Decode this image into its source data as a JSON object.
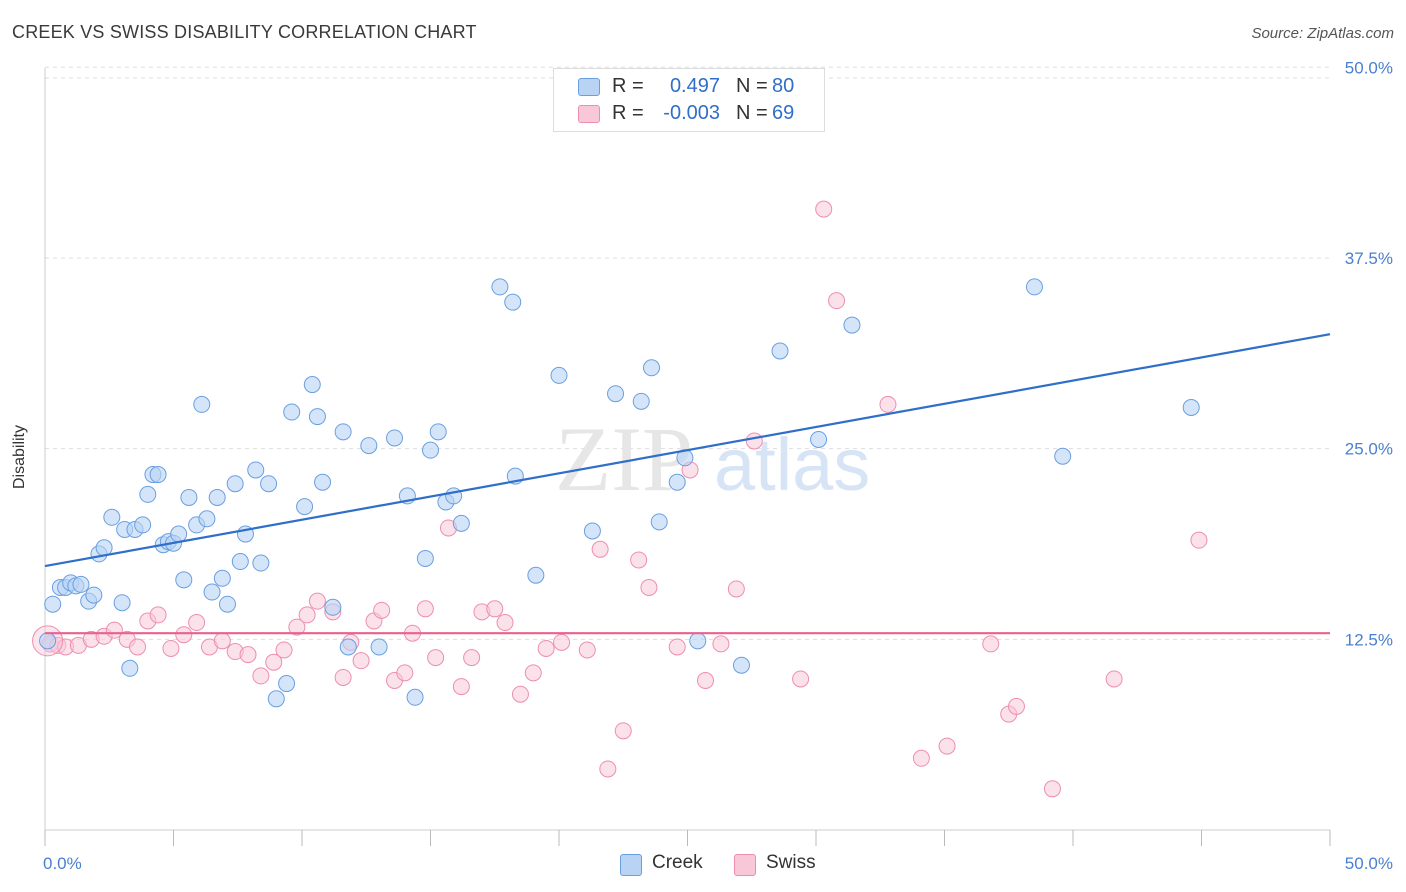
{
  "title": "CREEK VS SWISS DISABILITY CORRELATION CHART",
  "source": "Source: ZipAtlas.com",
  "watermark": {
    "zip": "ZIP",
    "atlas": "atlas"
  },
  "legend": {
    "rows": [
      {
        "r_label": "R =",
        "r_value": "0.497",
        "n_label": "N =",
        "n_value": "80"
      },
      {
        "r_label": "R =",
        "r_value": "-0.003",
        "n_label": "N =",
        "n_value": "69"
      }
    ]
  },
  "colors": {
    "creek_fill": "#b9d3f5",
    "creek_stroke": "#6a9fe0",
    "creek_line": "#2f6fc9",
    "swiss_fill": "#f8c8d8",
    "swiss_stroke": "#ee8eaf",
    "swiss_line": "#e8628c",
    "tick_label": "#4a7fd0",
    "grid": "#dddddd"
  },
  "chart_data": {
    "type": "scatter",
    "ylabel": "Disability",
    "xlabel": "",
    "xlim": [
      0,
      50
    ],
    "ylim": [
      0,
      51
    ],
    "x_tick_labels": [
      "0.0%",
      "50.0%"
    ],
    "y_tick_labels": [
      "12.5%",
      "25.0%",
      "37.5%",
      "50.0%"
    ],
    "y_ticks": [
      12.5,
      25.0,
      37.5,
      50.0
    ],
    "grid": true,
    "legend_position": "bottom-center",
    "series": [
      {
        "name": "Creek",
        "trend": [
          [
            0,
            17.3
          ],
          [
            50,
            32.5
          ]
        ],
        "points": [
          [
            0.3,
            14.8
          ],
          [
            0.6,
            15.9
          ],
          [
            0.8,
            15.9
          ],
          [
            1.0,
            16.2
          ],
          [
            1.2,
            16.0
          ],
          [
            1.4,
            16.1
          ],
          [
            1.7,
            15.0
          ],
          [
            1.9,
            15.4
          ],
          [
            2.1,
            18.1
          ],
          [
            2.3,
            18.5
          ],
          [
            2.6,
            20.5
          ],
          [
            3.0,
            14.9
          ],
          [
            3.1,
            19.7
          ],
          [
            3.3,
            10.6
          ],
          [
            3.5,
            19.7
          ],
          [
            3.8,
            20.0
          ],
          [
            4.0,
            22.0
          ],
          [
            4.2,
            23.3
          ],
          [
            4.4,
            23.3
          ],
          [
            4.6,
            18.7
          ],
          [
            4.8,
            18.9
          ],
          [
            5.0,
            18.8
          ],
          [
            5.2,
            19.4
          ],
          [
            5.4,
            16.4
          ],
          [
            5.6,
            21.8
          ],
          [
            5.9,
            20.0
          ],
          [
            6.1,
            27.9
          ],
          [
            6.3,
            20.4
          ],
          [
            6.5,
            15.6
          ],
          [
            6.7,
            21.8
          ],
          [
            6.9,
            16.5
          ],
          [
            7.1,
            14.8
          ],
          [
            7.4,
            22.7
          ],
          [
            7.6,
            17.6
          ],
          [
            7.8,
            19.4
          ],
          [
            8.2,
            23.6
          ],
          [
            8.4,
            17.5
          ],
          [
            8.7,
            22.7
          ],
          [
            9.0,
            8.6
          ],
          [
            9.4,
            9.6
          ],
          [
            9.6,
            27.4
          ],
          [
            10.1,
            21.2
          ],
          [
            10.4,
            29.2
          ],
          [
            10.6,
            27.1
          ],
          [
            10.8,
            22.8
          ],
          [
            11.2,
            14.6
          ],
          [
            11.6,
            26.1
          ],
          [
            11.8,
            12.0
          ],
          [
            12.6,
            25.2
          ],
          [
            13.0,
            12.0
          ],
          [
            13.6,
            25.7
          ],
          [
            14.1,
            21.9
          ],
          [
            14.4,
            8.7
          ],
          [
            14.8,
            17.8
          ],
          [
            15.0,
            24.9
          ],
          [
            15.3,
            26.1
          ],
          [
            15.6,
            21.5
          ],
          [
            15.9,
            21.9
          ],
          [
            16.2,
            20.1
          ],
          [
            17.7,
            35.6
          ],
          [
            18.2,
            34.6
          ],
          [
            18.3,
            23.2
          ],
          [
            19.1,
            16.7
          ],
          [
            20.0,
            29.8
          ],
          [
            21.3,
            19.6
          ],
          [
            22.2,
            28.6
          ],
          [
            23.2,
            28.1
          ],
          [
            23.6,
            30.3
          ],
          [
            23.9,
            20.2
          ],
          [
            24.6,
            22.8
          ],
          [
            24.9,
            24.4
          ],
          [
            25.4,
            12.4
          ],
          [
            27.1,
            10.8
          ],
          [
            28.6,
            31.4
          ],
          [
            30.1,
            25.6
          ],
          [
            31.4,
            33.1
          ],
          [
            38.5,
            35.6
          ],
          [
            39.6,
            24.5
          ],
          [
            44.6,
            27.7
          ],
          [
            0.1,
            12.4
          ]
        ]
      },
      {
        "name": "Swiss",
        "trend": [
          [
            0,
            12.9
          ],
          [
            50,
            12.9
          ]
        ],
        "points": [
          [
            0.2,
            12.2
          ],
          [
            0.5,
            12.1
          ],
          [
            0.8,
            12.0
          ],
          [
            1.3,
            12.1
          ],
          [
            1.8,
            12.5
          ],
          [
            2.3,
            12.7
          ],
          [
            2.7,
            13.1
          ],
          [
            3.2,
            12.5
          ],
          [
            3.6,
            12.0
          ],
          [
            4.0,
            13.7
          ],
          [
            4.4,
            14.1
          ],
          [
            4.9,
            11.9
          ],
          [
            5.4,
            12.8
          ],
          [
            5.9,
            13.6
          ],
          [
            6.4,
            12.0
          ],
          [
            6.9,
            12.4
          ],
          [
            7.4,
            11.7
          ],
          [
            7.9,
            11.5
          ],
          [
            8.4,
            10.1
          ],
          [
            8.9,
            11.0
          ],
          [
            9.3,
            11.8
          ],
          [
            9.8,
            13.3
          ],
          [
            10.2,
            14.1
          ],
          [
            10.6,
            15.0
          ],
          [
            11.2,
            14.3
          ],
          [
            11.6,
            10.0
          ],
          [
            11.9,
            12.3
          ],
          [
            12.3,
            11.1
          ],
          [
            12.8,
            13.7
          ],
          [
            13.1,
            14.4
          ],
          [
            13.6,
            9.8
          ],
          [
            14.0,
            10.3
          ],
          [
            14.3,
            12.9
          ],
          [
            14.8,
            14.5
          ],
          [
            15.2,
            11.3
          ],
          [
            15.7,
            19.8
          ],
          [
            16.2,
            9.4
          ],
          [
            16.6,
            11.3
          ],
          [
            17.0,
            14.3
          ],
          [
            17.5,
            14.5
          ],
          [
            17.9,
            13.6
          ],
          [
            18.5,
            8.9
          ],
          [
            19.0,
            10.3
          ],
          [
            19.5,
            11.9
          ],
          [
            20.1,
            12.3
          ],
          [
            21.1,
            11.8
          ],
          [
            21.6,
            18.4
          ],
          [
            21.9,
            4.0
          ],
          [
            22.5,
            6.5
          ],
          [
            23.1,
            17.7
          ],
          [
            23.5,
            15.9
          ],
          [
            24.6,
            12.0
          ],
          [
            25.1,
            23.6
          ],
          [
            25.7,
            9.8
          ],
          [
            26.3,
            12.2
          ],
          [
            26.9,
            15.8
          ],
          [
            27.6,
            25.5
          ],
          [
            29.4,
            9.9
          ],
          [
            30.3,
            40.7
          ],
          [
            30.8,
            34.7
          ],
          [
            32.8,
            27.9
          ],
          [
            34.1,
            4.7
          ],
          [
            35.1,
            5.5
          ],
          [
            36.8,
            12.2
          ],
          [
            37.5,
            7.6
          ],
          [
            37.8,
            8.1
          ],
          [
            39.2,
            2.7
          ],
          [
            41.6,
            9.9
          ],
          [
            44.9,
            19.0
          ]
        ]
      }
    ]
  },
  "bottom_legend": [
    {
      "label": "Creek"
    },
    {
      "label": "Swiss"
    }
  ]
}
